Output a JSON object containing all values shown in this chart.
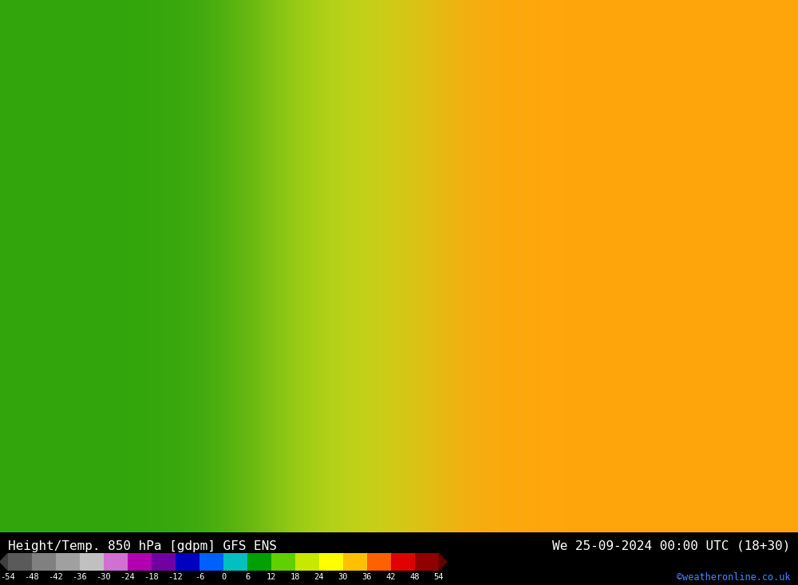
{
  "title_left": "Height/Temp. 850 hPa [gdpm] GFS ENS",
  "title_right": "We 25-09-2024 00:00 UTC (18+30)",
  "credit": "©weatheronline.co.uk",
  "colorbar_levels": [
    -54,
    -48,
    -42,
    -36,
    -30,
    -24,
    -18,
    -12,
    -6,
    0,
    6,
    12,
    18,
    24,
    30,
    36,
    42,
    48,
    54
  ],
  "colorbar_colors": [
    "#5a5a5a",
    "#808080",
    "#a0a0a0",
    "#c0c0c0",
    "#d070d0",
    "#b000b0",
    "#7000a0",
    "#0000c0",
    "#0060ff",
    "#00c0c0",
    "#00a000",
    "#60d000",
    "#c8e800",
    "#ffff00",
    "#ffc000",
    "#ff6000",
    "#e00000",
    "#900000"
  ],
  "background_color": "#ffffff",
  "map_bg_color": "#7cba3c",
  "fig_width": 10.0,
  "fig_height": 7.33,
  "dpi": 100
}
